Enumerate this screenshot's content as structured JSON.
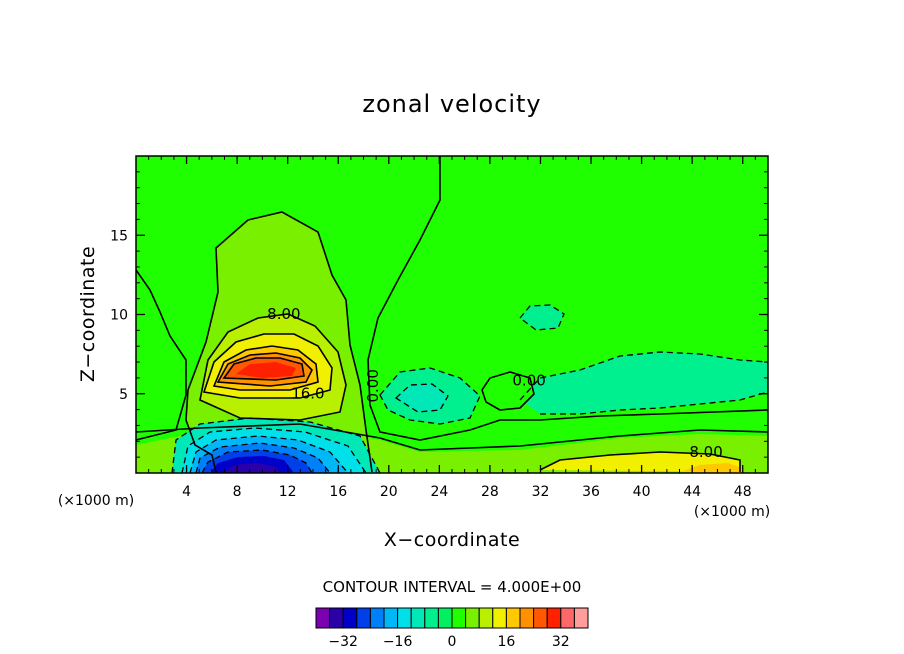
{
  "chart_data": {
    "type": "contour",
    "title": "zonal velocity",
    "xlabel": "X−coordinate",
    "ylabel": "Z−coordinate",
    "x_unit": "(×1000 m)",
    "y_unit": "(×1000 m)",
    "x_range": [
      0,
      50
    ],
    "y_range": [
      0,
      20
    ],
    "x_ticks": [
      4,
      8,
      12,
      16,
      20,
      24,
      28,
      32,
      36,
      40,
      44,
      48
    ],
    "y_ticks": [
      5,
      10,
      15
    ],
    "contour_interval": "CONTOUR INTERVAL = 4.000E+00",
    "colorbar": {
      "levels": [
        -36,
        -32,
        -28,
        -24,
        -20,
        -16,
        -12,
        -8,
        -4,
        0,
        4,
        8,
        12,
        16,
        20,
        24,
        28,
        32,
        36
      ],
      "colors": [
        "#7a00b0",
        "#2a00a8",
        "#0000c8",
        "#0040e8",
        "#0080f8",
        "#00b8f8",
        "#00e0e8",
        "#00e8b8",
        "#00f090",
        "#00f060",
        "#20ff00",
        "#78f000",
        "#b8f000",
        "#f0f000",
        "#ffc800",
        "#ff9000",
        "#ff5800",
        "#ff2000",
        "#ff6868",
        "#ff9c9c"
      ],
      "tick_values": [
        -32,
        -16,
        0,
        16,
        32
      ],
      "tick_labels": [
        "−32",
        "−16",
        "0",
        "16",
        "32"
      ]
    },
    "contour_labels": [
      {
        "text": "8.00",
        "x": 11.7,
        "z": 10.0
      },
      {
        "text": "16.0",
        "x": 13.6,
        "z": 5.0
      },
      {
        "text": "0.00",
        "x": 18.8,
        "z": 5.5
      },
      {
        "text": "0.00",
        "x": 31.1,
        "z": 5.8
      },
      {
        "text": "8.00",
        "x": 45.1,
        "z": 1.3
      }
    ],
    "features": [
      {
        "kind": "jet",
        "center_x": 10.5,
        "center_z": 6.5,
        "max": 30
      },
      {
        "kind": "negative",
        "center_x": 10.0,
        "center_z": 1.0,
        "min": -30
      },
      {
        "kind": "positive",
        "center_x": 44.0,
        "center_z": 0.6,
        "max": 14
      }
    ]
  }
}
